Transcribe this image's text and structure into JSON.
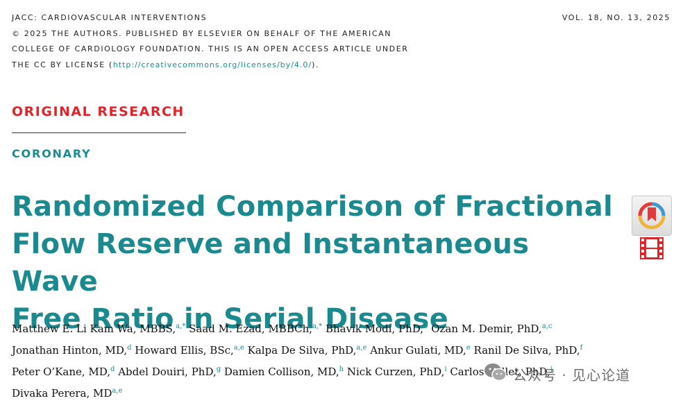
{
  "header": {
    "journal": "JACC: CARDIOVASCULAR INTERVENTIONS",
    "copyright_line1": "© 2025 THE AUTHORS. PUBLISHED BY ELSEVIER ON BEHALF OF THE AMERICAN",
    "copyright_line2": "COLLEGE OF CARDIOLOGY FOUNDATION. THIS IS AN OPEN ACCESS ARTICLE UNDER",
    "copyright_line3_pre": "THE CC BY LICENSE (",
    "license_url": "http://creativecommons.org/licenses/by/4.0/",
    "copyright_line3_post": ").",
    "volume": "VOL. 18, NO. 13, 2025"
  },
  "section": "ORIGINAL RESEARCH",
  "category": "CORONARY",
  "title_lines": [
    "Randomized Comparison of Fractional",
    "Flow Reserve and Instantaneous Wave",
    "Free Ratio in Serial Disease"
  ],
  "authors": [
    [
      {
        "name": "Matthew E. Li Kam Wa, MBBS,",
        "sup": "a,*"
      },
      {
        "name": " Saad M. Ezad, MBBCh,",
        "sup": "a,*"
      },
      {
        "name": " Bhavik Modi, PhD,",
        "sup": "b"
      },
      {
        "name": " Ozan M. Demir, PhD,",
        "sup": "a,c"
      }
    ],
    [
      {
        "name": "Jonathan Hinton, MD,",
        "sup": "d"
      },
      {
        "name": " Howard Ellis, BSc,",
        "sup": "a,e"
      },
      {
        "name": " Kalpa De Silva, PhD,",
        "sup": "a,e"
      },
      {
        "name": " Ankur Gulati, MD,",
        "sup": "e"
      },
      {
        "name": " Ranil De Silva, PhD,",
        "sup": "f"
      }
    ],
    [
      {
        "name": "Peter O’Kane, MD,",
        "sup": "d"
      },
      {
        "name": " Abdel Douiri, PhD,",
        "sup": "g"
      },
      {
        "name": " Damien Collison, MD,",
        "sup": "h"
      },
      {
        "name": " Nick Curzen, PhD,",
        "sup": "i"
      },
      {
        "name": " Carlos Collet, PhD,",
        "sup": "j"
      }
    ],
    [
      {
        "name": "Divaka Perera, MD",
        "sup": "a,e"
      }
    ]
  ],
  "icons": {
    "check_updates": "check-for-updates-icon",
    "video": "film-strip-icon",
    "wechat": "wechat-logo-icon"
  },
  "watermark": "公众号 · 见心论道",
  "colors": {
    "teal": "#1b8a8f",
    "red": "#e0242a"
  }
}
